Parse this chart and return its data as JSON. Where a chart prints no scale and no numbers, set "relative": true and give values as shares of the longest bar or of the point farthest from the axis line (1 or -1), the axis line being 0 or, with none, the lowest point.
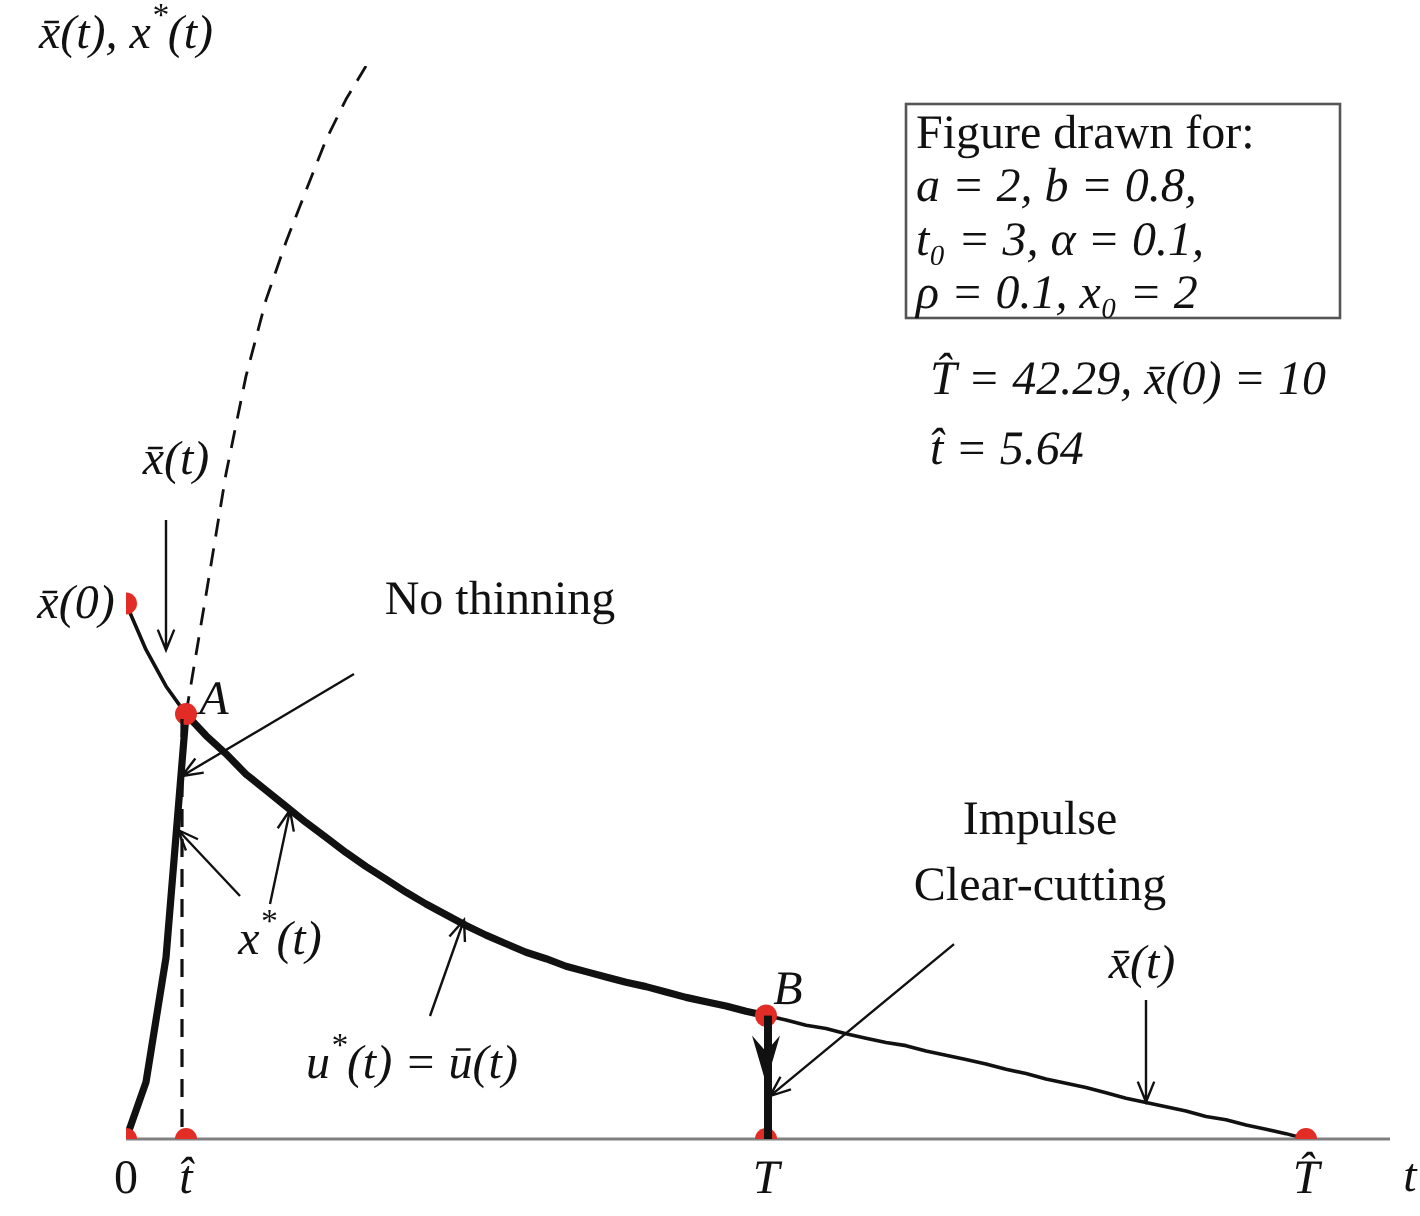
{
  "chart_data": {
    "type": "line",
    "relative": true,
    "xlabel": "t",
    "ylabel": "x̄(t), x$^{*}$(t)",
    "categories": [
      "0",
      null,
      null,
      "t̂",
      null,
      null,
      null,
      null,
      null,
      null,
      null,
      null,
      null,
      null,
      null,
      null,
      null,
      null,
      null,
      null,
      null,
      null,
      null,
      null,
      null,
      null,
      null,
      null,
      null,
      null,
      null,
      null,
      "T",
      null,
      null,
      null,
      null,
      null,
      null,
      null,
      null,
      null,
      null,
      null,
      null,
      null,
      null,
      null,
      null,
      null,
      null,
      null,
      null,
      null,
      null,
      null,
      null,
      null,
      null,
      "T̂"
    ],
    "series": [
      {
        "color": "#111111",
        "values": [
          0.499,
          0.456,
          0.422,
          0.396,
          0.376,
          0.359,
          0.34,
          0.325,
          0.31,
          0.295,
          0.281,
          0.267,
          0.254,
          0.242,
          0.23,
          0.219,
          0.209,
          0.199,
          0.19,
          0.182,
          0.174,
          0.168,
          0.161,
          0.156,
          0.151,
          0.146,
          0.142,
          0.137,
          0.132,
          0.128,
          0.124,
          0.119,
          0.115,
          0.111,
          0.106,
          0.103,
          0.098,
          0.094,
          0.09,
          0.087,
          0.082,
          0.078,
          0.074,
          0.07,
          0.065,
          0.061,
          0.056,
          0.052,
          0.048,
          0.043,
          0.038,
          0.034,
          0.03,
          0.026,
          0.021,
          0.018,
          0.013,
          0.009,
          0.005,
          0
        ]
      },
      {
        "color": "#111111",
        "values": [
          0,
          0.053,
          0.169,
          0.396,
          0.376,
          0.359,
          0.34,
          0.325,
          0.31,
          0.295,
          0.281,
          0.267,
          0.254,
          0.242,
          0.23,
          0.219,
          0.209,
          0.199,
          0.19,
          0.182,
          0.174,
          0.168,
          0.161,
          0.156,
          0.151,
          0.146,
          0.142,
          0.137,
          0.132,
          0.128,
          0.124,
          0.119,
          0.115,
          null,
          null,
          null,
          null,
          null,
          null,
          null,
          null,
          null,
          null,
          null,
          null,
          null,
          null,
          null,
          null,
          null,
          null,
          null,
          null,
          null,
          null,
          null,
          null,
          null,
          null,
          null
        ]
      },
      {
        "color": "#111111",
        "line_style": "dashed",
        "values": [
          null,
          null,
          null,
          0.396,
          0.507,
          0.62,
          0.711,
          0.782,
          0.836,
          0.884,
          0.931,
          0.969,
          1,
          null,
          null,
          null,
          null,
          null,
          null,
          null,
          null,
          null,
          null,
          null,
          null,
          null,
          null,
          null,
          null,
          null,
          null,
          null,
          null,
          null,
          null,
          null,
          null,
          null,
          null,
          null,
          null,
          null,
          null,
          null,
          null,
          null,
          null,
          null,
          null,
          null,
          null,
          null,
          null,
          null,
          null,
          null,
          null,
          null,
          null,
          null
        ]
      },
      {
        "type": "bar",
        "color": "#111111",
        "line_style": "dashed",
        "values": [
          null,
          null,
          null,
          0.396,
          null,
          null,
          null,
          null,
          null,
          null,
          null,
          null,
          null,
          null,
          null,
          null,
          null,
          null,
          null,
          null,
          null,
          null,
          null,
          null,
          null,
          null,
          null,
          null,
          null,
          null,
          null,
          null,
          null,
          null,
          null,
          null,
          null,
          null,
          null,
          null,
          null,
          null,
          null,
          null,
          null,
          null,
          null,
          null,
          null,
          null,
          null,
          null,
          null,
          null,
          null,
          null,
          null,
          null,
          null,
          null
        ]
      },
      {
        "type": "bar",
        "color": "#111111",
        "values": [
          null,
          null,
          null,
          null,
          null,
          null,
          null,
          null,
          null,
          null,
          null,
          null,
          null,
          null,
          null,
          null,
          null,
          null,
          null,
          null,
          null,
          null,
          null,
          null,
          null,
          null,
          null,
          null,
          null,
          null,
          null,
          null,
          0.115,
          null,
          null,
          null,
          null,
          null,
          null,
          null,
          null,
          null,
          null,
          null,
          null,
          null,
          null,
          null,
          null,
          null,
          null,
          null,
          null,
          null,
          null,
          null,
          null,
          null,
          null,
          null
        ]
      },
      {
        "type": "scatter",
        "color": "#e22d26",
        "marker": "circle",
        "values": [
          0.499,
          null,
          null,
          0.396,
          null,
          null,
          null,
          null,
          null,
          null,
          null,
          null,
          null,
          null,
          null,
          null,
          null,
          null,
          null,
          null,
          null,
          null,
          null,
          null,
          null,
          null,
          null,
          null,
          null,
          null,
          null,
          null,
          0.115,
          null,
          null,
          null,
          null,
          null,
          null,
          null,
          null,
          null,
          null,
          null,
          null,
          null,
          null,
          null,
          null,
          null,
          null,
          null,
          null,
          null,
          null,
          null,
          null,
          null,
          null,
          null
        ]
      },
      {
        "type": "scatter",
        "color": "#e22d26",
        "marker": "circle",
        "values": [
          0,
          null,
          null,
          0,
          null,
          null,
          null,
          null,
          null,
          null,
          null,
          null,
          null,
          null,
          null,
          null,
          null,
          null,
          null,
          null,
          null,
          null,
          null,
          null,
          null,
          null,
          null,
          null,
          null,
          null,
          null,
          null,
          0,
          null,
          null,
          null,
          null,
          null,
          null,
          null,
          null,
          null,
          null,
          null,
          null,
          null,
          null,
          null,
          null,
          null,
          null,
          null,
          null,
          null,
          null,
          null,
          null,
          null,
          null,
          0
        ]
      }
    ],
    "annotations": [
      "x̄(t)",
      "No thinning",
      "x$^{*}$(t)",
      "u$^{*}$(t) = ū(t)",
      {
        "text": "Impulse\nClear-cutting",
        "x": "T",
        "y": 0.04
      },
      "x̄(t)",
      {
        "text": "x̄(0)",
        "x": "0",
        "y": 0.499
      },
      {
        "text": "A",
        "x": "t̂",
        "y": 0.396
      },
      {
        "text": "B",
        "x": "T",
        "y": 0.115
      },
      "Figure drawn for:\na = 2, b = 0.8,\nt₀ = 3, α = 0.1,\nρ = 0.1, x₀ = 2",
      "T̂ = 42.29, x̄(0) = 10",
      "t̂ = 5.64"
    ]
  }
}
